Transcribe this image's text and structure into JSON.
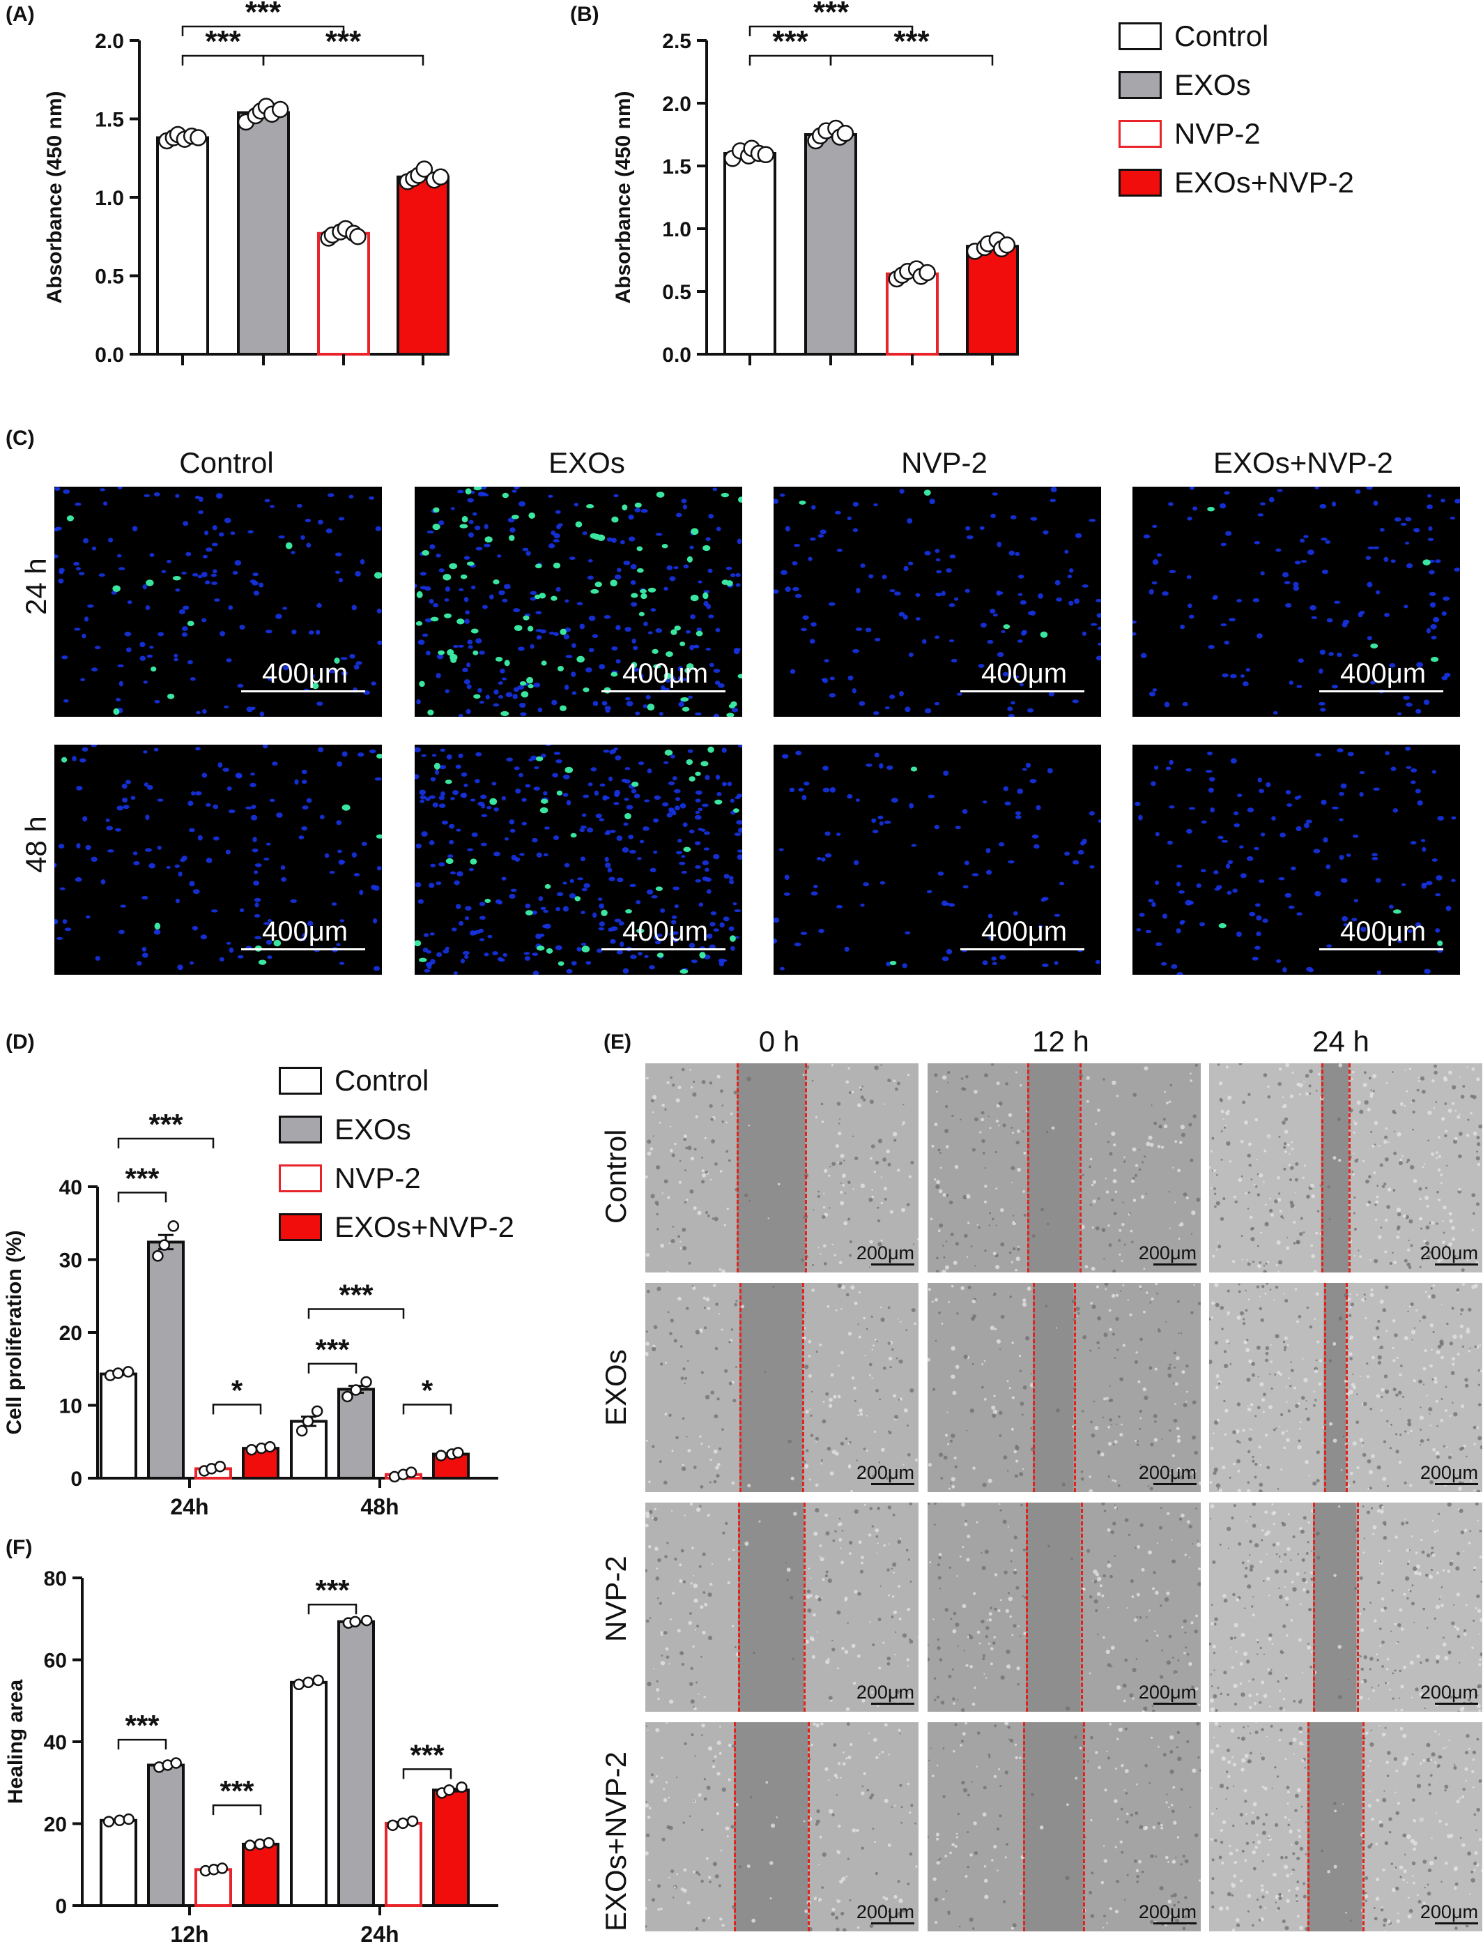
{
  "colors": {
    "control": "#ffffff",
    "exos": "#a6a6ab",
    "nvp2_edge": "#e8232a",
    "exos_nvp2": "#f20d0d",
    "axis": "#111111"
  },
  "legend_top": [
    "Control",
    "EXOs",
    "NVP-2",
    "EXOs+NVP-2"
  ],
  "legend_d": [
    "Control",
    "EXOs",
    "NVP-2",
    "EXOs+NVP-2"
  ],
  "panel_labels": {
    "a": "(A)",
    "b": "(B)",
    "c": "(C)",
    "d": "(D)",
    "e": "(E)",
    "f": "(F)"
  },
  "chart_data": [
    {
      "id": "A",
      "type": "bar",
      "ylabel": "Absorbance (450 nm)",
      "ylim": [
        0,
        2.0
      ],
      "ticks": [
        "0.0",
        "0.5",
        "1.0",
        "1.5",
        "2.0"
      ],
      "tick_values": [
        0,
        0.5,
        1.0,
        1.5,
        2.0
      ],
      "categories": [
        "Control",
        "EXOs",
        "NVP-2",
        "EXOs+NVP-2"
      ],
      "values": [
        1.38,
        1.54,
        0.77,
        1.13
      ],
      "points": [
        [
          1.36,
          1.38,
          1.4,
          1.37,
          1.39,
          1.38
        ],
        [
          1.48,
          1.52,
          1.55,
          1.58,
          1.53,
          1.56
        ],
        [
          0.74,
          0.76,
          0.78,
          0.8,
          0.77,
          0.75
        ],
        [
          1.1,
          1.12,
          1.14,
          1.18,
          1.11,
          1.13
        ]
      ],
      "sig": [
        {
          "from": 0,
          "to": 1,
          "label": "***"
        },
        {
          "from": 0,
          "to": 2,
          "label": "***"
        },
        {
          "from": 1,
          "to": 3,
          "label": "***"
        }
      ]
    },
    {
      "id": "B",
      "type": "bar",
      "ylabel": "Absorbance (450 nm)",
      "ylim": [
        0,
        2.5
      ],
      "ticks": [
        "0.0",
        "0.5",
        "1.0",
        "1.5",
        "2.0",
        "2.5"
      ],
      "tick_values": [
        0,
        0.5,
        1.0,
        1.5,
        2.0,
        2.5
      ],
      "categories": [
        "Control",
        "EXOs",
        "NVP-2",
        "EXOs+NVP-2"
      ],
      "values": [
        1.6,
        1.75,
        0.64,
        0.86
      ],
      "points": [
        [
          1.56,
          1.62,
          1.58,
          1.64,
          1.6,
          1.59
        ],
        [
          1.7,
          1.74,
          1.78,
          1.8,
          1.73,
          1.76
        ],
        [
          0.6,
          0.63,
          0.66,
          0.68,
          0.62,
          0.65
        ],
        [
          0.82,
          0.85,
          0.88,
          0.91,
          0.84,
          0.87
        ]
      ],
      "sig": [
        {
          "from": 0,
          "to": 1,
          "label": "***"
        },
        {
          "from": 0,
          "to": 2,
          "label": "***"
        },
        {
          "from": 1,
          "to": 3,
          "label": "***"
        }
      ]
    },
    {
      "id": "D",
      "type": "bar",
      "ylabel": "Cell proliferation (%)",
      "ylim": [
        0,
        40
      ],
      "ticks": [
        "0",
        "10",
        "20",
        "30",
        "40"
      ],
      "tick_values": [
        0,
        10,
        20,
        30,
        40
      ],
      "groups": [
        "24h",
        "48h"
      ],
      "series": [
        {
          "name": "Control",
          "values": [
            14.3,
            7.8
          ],
          "points": [
            [
              14.1,
              14.4,
              14.6
            ],
            [
              6.5,
              7.8,
              9.2
            ]
          ]
        },
        {
          "name": "EXOs",
          "values": [
            32.4,
            12.2
          ],
          "points": [
            [
              30.5,
              32.0,
              34.6
            ],
            [
              11.2,
              12.1,
              13.2
            ]
          ]
        },
        {
          "name": "NVP-2",
          "values": [
            1.3,
            0.5
          ],
          "points": [
            [
              1.0,
              1.3,
              1.6
            ],
            [
              0.2,
              0.5,
              0.8
            ]
          ]
        },
        {
          "name": "EXOs+NVP-2",
          "values": [
            4.1,
            3.3
          ],
          "points": [
            [
              3.9,
              4.1,
              4.3
            ],
            [
              3.1,
              3.3,
              3.5
            ]
          ]
        }
      ],
      "sig": [
        {
          "group": 0,
          "from": 0,
          "to": 1,
          "label": "***",
          "y": 39.2
        },
        {
          "group": 0,
          "from": 0,
          "to": 2,
          "label": "***",
          "y": 46.6
        },
        {
          "group": 0,
          "from": 2,
          "to": 3,
          "label": "*",
          "y": 10.1
        },
        {
          "group": 1,
          "from": 0,
          "to": 1,
          "label": "***",
          "y": 15.7
        },
        {
          "group": 1,
          "from": 0,
          "to": 2,
          "label": "***",
          "y": 23.2
        },
        {
          "group": 1,
          "from": 2,
          "to": 3,
          "label": "*",
          "y": 10.1
        }
      ]
    },
    {
      "id": "F",
      "type": "bar",
      "ylabel": "Healing area",
      "ylim": [
        0,
        80
      ],
      "ticks": [
        "0",
        "20",
        "40",
        "60",
        "80"
      ],
      "tick_values": [
        0,
        20,
        40,
        60,
        80
      ],
      "groups": [
        "12h",
        "24h"
      ],
      "series": [
        {
          "name": "Control",
          "values": [
            20.8,
            54.5
          ],
          "points": [
            [
              20.5,
              20.8,
              21.1
            ],
            [
              54.0,
              54.5,
              55.0
            ]
          ]
        },
        {
          "name": "EXOs",
          "values": [
            34.3,
            69.3
          ],
          "points": [
            [
              33.8,
              34.3,
              34.8
            ],
            [
              69.0,
              69.3,
              69.6
            ]
          ]
        },
        {
          "name": "NVP-2",
          "values": [
            8.8,
            20.1
          ],
          "points": [
            [
              8.5,
              8.8,
              9.1
            ],
            [
              19.6,
              20.1,
              20.6
            ]
          ]
        },
        {
          "name": "EXOs+NVP-2",
          "values": [
            15.0,
            28.2
          ],
          "points": [
            [
              14.7,
              15.0,
              15.3
            ],
            [
              27.5,
              28.2,
              28.9
            ]
          ]
        }
      ],
      "sig": [
        {
          "group": 0,
          "from": 0,
          "to": 1,
          "label": "***",
          "y": 40.5
        },
        {
          "group": 0,
          "from": 2,
          "to": 3,
          "label": "***",
          "y": 24.5
        },
        {
          "group": 1,
          "from": 0,
          "to": 1,
          "label": "***",
          "y": 73.5
        },
        {
          "group": 1,
          "from": 2,
          "to": 3,
          "label": "***",
          "y": 33.3
        }
      ]
    }
  ],
  "panel_c": {
    "columns": [
      "Control",
      "EXOs",
      "NVP-2",
      "EXOs+NVP-2"
    ],
    "rows": [
      "24 h",
      "48 h"
    ],
    "scale": "400μm",
    "green_density": [
      [
        0.08,
        0.45,
        0.03,
        0.03
      ],
      [
        0.05,
        0.12,
        0.02,
        0.02
      ]
    ],
    "blue_density": [
      [
        1.0,
        1.5,
        0.9,
        0.9
      ],
      [
        1.0,
        2.2,
        0.7,
        1.0
      ]
    ]
  },
  "panel_e": {
    "columns": [
      "0 h",
      "12 h",
      "24 h"
    ],
    "rows": [
      "Control",
      "EXOs",
      "NVP-2",
      "EXOs+NVP-2"
    ],
    "scale": "200μm",
    "gap_fraction": [
      [
        0.25,
        0.19,
        0.1
      ],
      [
        0.23,
        0.15,
        0.08
      ],
      [
        0.24,
        0.2,
        0.16
      ],
      [
        0.27,
        0.22,
        0.2
      ]
    ]
  }
}
